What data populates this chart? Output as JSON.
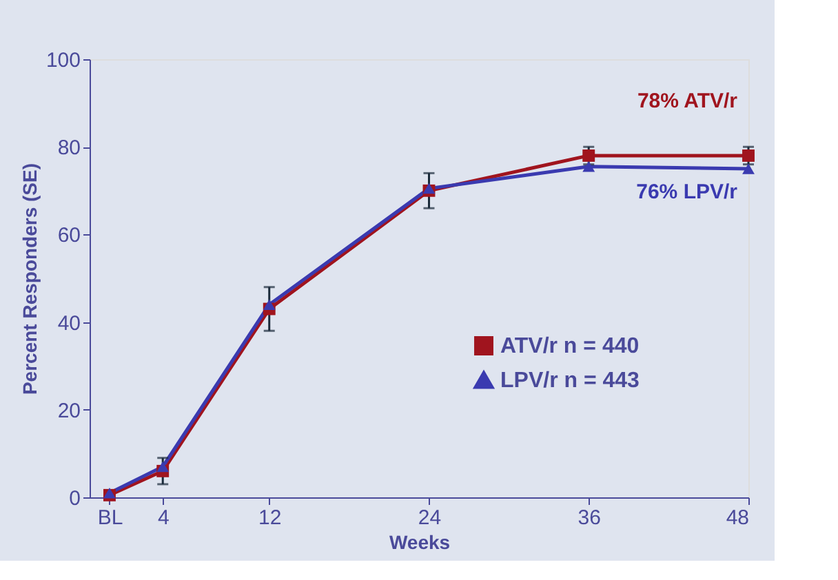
{
  "chart_data": {
    "type": "line",
    "xlabel": "Weeks",
    "ylabel": "Percent Responders (SE)",
    "x": [
      0,
      4,
      12,
      24,
      36,
      48
    ],
    "series": [
      {
        "name": "ATV/r  n = 440",
        "color": "#a0141e",
        "marker": "square",
        "values": [
          0.5,
          6,
          43,
          70,
          78,
          78
        ],
        "errors": [
          null,
          3,
          5,
          4,
          2,
          2
        ]
      },
      {
        "name": "LPV/r  n = 443",
        "color": "#3a3ab0",
        "marker": "triangle",
        "values": [
          1,
          7,
          44,
          70.5,
          75.5,
          75
        ]
      }
    ],
    "annotations": [
      "78% ATV/r",
      "76% LPV/r"
    ],
    "xlim": [
      -1.5,
      48
    ],
    "xticks": [
      {
        "value": 0,
        "label": "BL"
      },
      4,
      12,
      24,
      36,
      48
    ],
    "ylim": [
      0,
      100
    ],
    "yticks": [
      0,
      20,
      40,
      60,
      80,
      100
    ],
    "grid": false,
    "legend": "bottom right",
    "line_style": "solid"
  }
}
